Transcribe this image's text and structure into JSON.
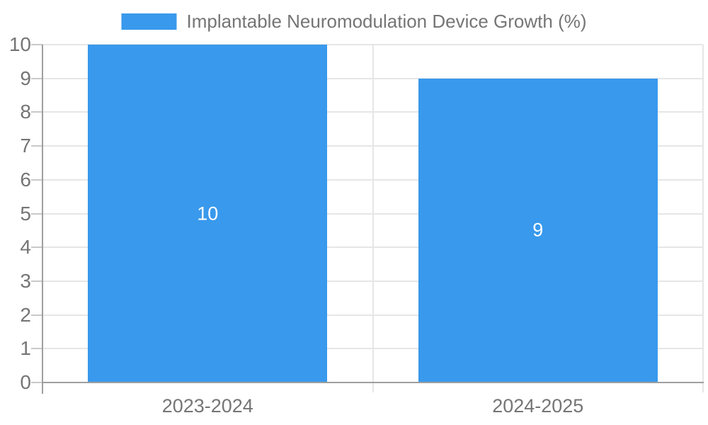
{
  "colors": {
    "bar": "#3999EC",
    "bar_label": "#ffffff",
    "axis_line": "#9e9e9e",
    "gridline": "#e6e6e6",
    "tick": "#c9c9c9",
    "text": "#757575"
  },
  "chart_data": {
    "type": "bar",
    "title": "Implantable Neuromodulation Device Growth (%)",
    "categories": [
      "2023-2024",
      "2024-2025"
    ],
    "series": [
      {
        "name": "Implantable Neuromodulation Device Growth (%)",
        "values": [
          10,
          9
        ],
        "data_labels": [
          "10",
          "9"
        ]
      }
    ],
    "xlabel": "",
    "ylabel": "",
    "ylim": [
      0,
      10
    ],
    "yticks": [
      0,
      1,
      2,
      3,
      4,
      5,
      6,
      7,
      8,
      9,
      10
    ],
    "grid": true,
    "legend_position": "top",
    "bar_label_position": "inside-center"
  }
}
